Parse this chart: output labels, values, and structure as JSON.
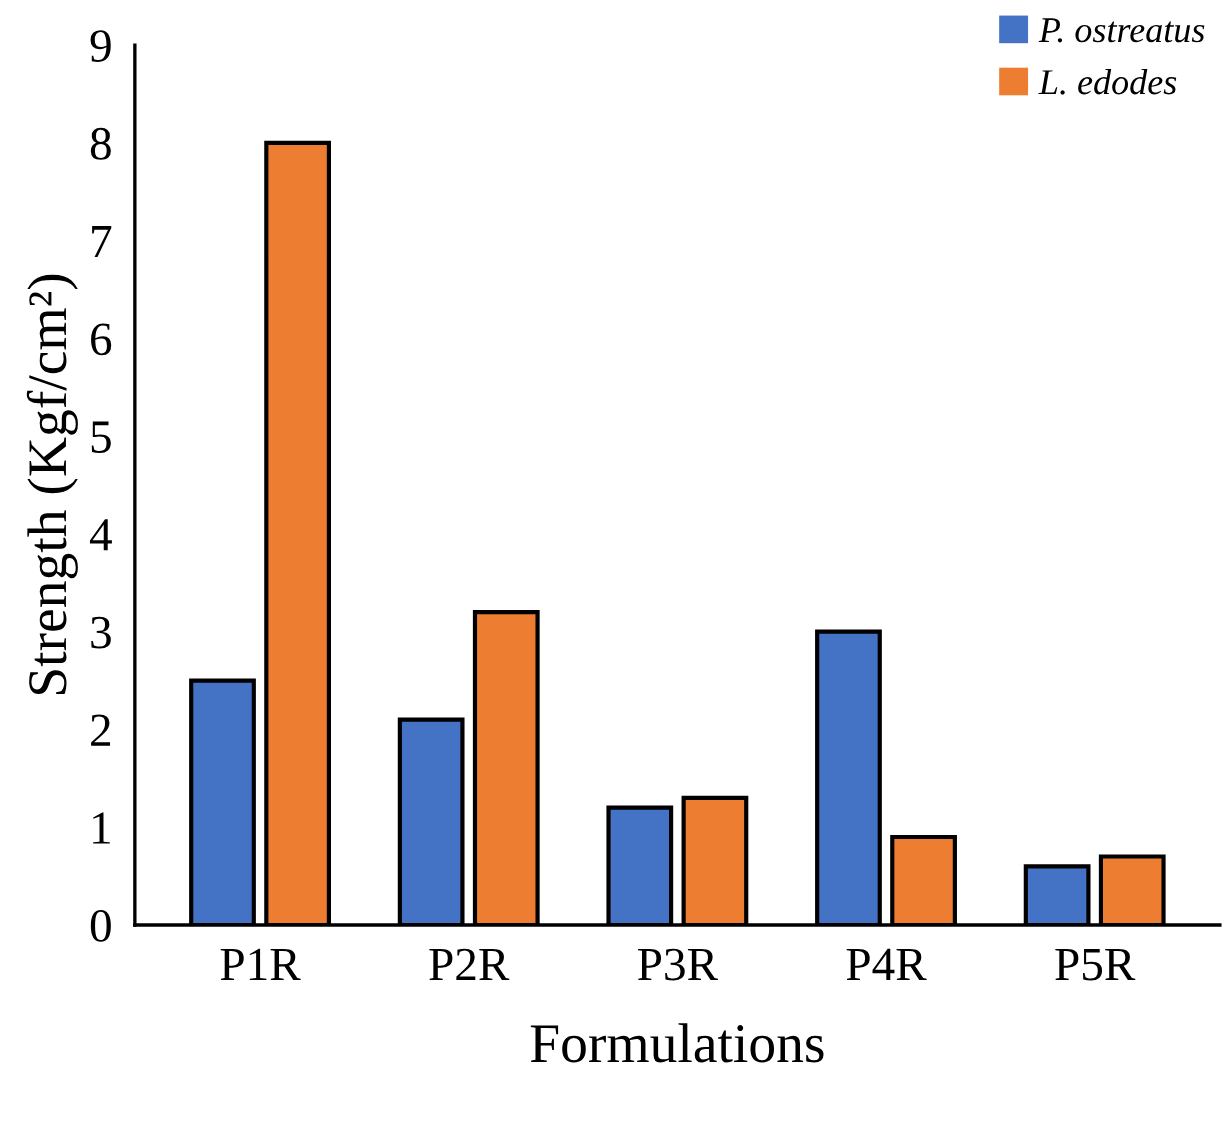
{
  "chart_data": {
    "type": "bar",
    "xlabel": "Formulations",
    "ylabel": "Strength (Kgf/cm²)",
    "categories": [
      "P1R",
      "P2R",
      "P3R",
      "P4R",
      "P5R"
    ],
    "series": [
      {
        "name": "P. ostreatus",
        "color": "#4472c4",
        "values": [
          2.5,
          2.1,
          1.2,
          3.0,
          0.6
        ]
      },
      {
        "name": "L. edodes",
        "color": "#ed7d31",
        "values": [
          8.0,
          3.2,
          1.3,
          0.9,
          0.7
        ]
      }
    ],
    "ylim": [
      0,
      9
    ],
    "yticks": [
      0,
      1,
      2,
      3,
      4,
      5,
      6,
      7,
      8,
      9
    ],
    "grid": false,
    "legend": "top right"
  }
}
